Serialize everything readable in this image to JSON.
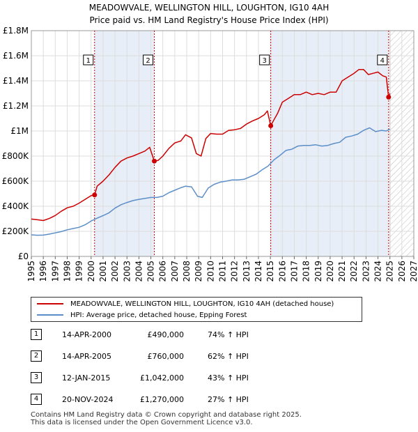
{
  "header": {
    "title_line1": "MEADOWVALE, WELLINGTON HILL, LOUGHTON, IG10 4AH",
    "title_line2": "Price paid vs. HM Land Registry's House Price Index (HPI)"
  },
  "colors": {
    "property_line": "#cc0000",
    "hpi_line": "#5b8ec9",
    "grid": "#dddddd",
    "highlight_band": "#e8eef7",
    "sale_marker_line": "#cc0000"
  },
  "chart_data": {
    "type": "line",
    "xlim": [
      1995,
      2027
    ],
    "ylim": [
      0,
      1800000
    ],
    "x_ticks": [
      "1995",
      "1996",
      "1997",
      "1998",
      "1999",
      "2000",
      "2001",
      "2002",
      "2003",
      "2004",
      "2005",
      "2006",
      "2007",
      "2008",
      "2009",
      "2010",
      "2011",
      "2012",
      "2013",
      "2014",
      "2015",
      "2016",
      "2017",
      "2018",
      "2019",
      "2020",
      "2021",
      "2022",
      "2023",
      "2024",
      "2025",
      "2026",
      "2027"
    ],
    "y_ticks": [
      {
        "value": 0,
        "label": "£0"
      },
      {
        "value": 200000,
        "label": "£200K"
      },
      {
        "value": 400000,
        "label": "£400K"
      },
      {
        "value": 600000,
        "label": "£600K"
      },
      {
        "value": 800000,
        "label": "£800K"
      },
      {
        "value": 1000000,
        "label": "£1M"
      },
      {
        "value": 1200000,
        "label": "£1.2M"
      },
      {
        "value": 1400000,
        "label": "£1.4M"
      },
      {
        "value": 1600000,
        "label": "£1.6M"
      },
      {
        "value": 1800000,
        "label": "£1.8M"
      }
    ],
    "forecast_start": 2025.0,
    "highlight_bands": [
      {
        "start": 2000.29,
        "end": 2005.29
      },
      {
        "start": 2015.03,
        "end": 2024.89
      }
    ],
    "series": [
      {
        "name": "MEADOWVALE, WELLINGTON HILL, LOUGHTON, IG10 4AH (detached house)",
        "color": "#cc0000",
        "x": [
          1995.0,
          1995.5,
          1996.0,
          1996.5,
          1997.0,
          1997.5,
          1998.0,
          1998.5,
          1999.0,
          1999.5,
          2000.0,
          2000.29,
          2000.5,
          2001.0,
          2001.5,
          2002.0,
          2002.5,
          2003.0,
          2003.5,
          2004.0,
          2004.5,
          2004.9,
          2005.29,
          2005.6,
          2006.0,
          2006.5,
          2007.0,
          2007.5,
          2007.9,
          2008.4,
          2008.8,
          2009.2,
          2009.6,
          2010.0,
          2010.5,
          2011.0,
          2011.5,
          2012.0,
          2012.5,
          2013.0,
          2013.5,
          2014.0,
          2014.5,
          2014.75,
          2015.03,
          2015.3,
          2015.6,
          2016.0,
          2016.5,
          2017.0,
          2017.5,
          2018.0,
          2018.5,
          2019.0,
          2019.5,
          2020.0,
          2020.5,
          2021.0,
          2021.5,
          2022.0,
          2022.4,
          2022.8,
          2023.2,
          2023.6,
          2024.0,
          2024.4,
          2024.7,
          2024.89,
          2025.0
        ],
        "values": [
          298000,
          292000,
          286000,
          302000,
          326000,
          360000,
          388000,
          400000,
          425000,
          455000,
          485000,
          490000,
          560000,
          600000,
          650000,
          710000,
          760000,
          785000,
          800000,
          820000,
          840000,
          870000,
          760000,
          765000,
          800000,
          860000,
          905000,
          920000,
          970000,
          945000,
          820000,
          800000,
          940000,
          980000,
          975000,
          975000,
          1005000,
          1010000,
          1020000,
          1055000,
          1080000,
          1100000,
          1130000,
          1160000,
          1042000,
          1090000,
          1140000,
          1230000,
          1260000,
          1290000,
          1290000,
          1310000,
          1290000,
          1300000,
          1290000,
          1310000,
          1310000,
          1400000,
          1430000,
          1460000,
          1490000,
          1490000,
          1450000,
          1460000,
          1470000,
          1440000,
          1430000,
          1270000,
          1300000
        ]
      },
      {
        "name": "HPI: Average price, detached house, Epping Forest",
        "color": "#5b8ec9",
        "x": [
          1995.0,
          1995.5,
          1996.0,
          1996.5,
          1997.0,
          1997.5,
          1998.0,
          1998.5,
          1999.0,
          1999.5,
          2000.0,
          2000.5,
          2001.0,
          2001.5,
          2002.0,
          2002.5,
          2003.0,
          2003.5,
          2004.0,
          2004.5,
          2005.0,
          2005.5,
          2006.0,
          2006.5,
          2007.0,
          2007.5,
          2007.9,
          2008.4,
          2008.9,
          2009.3,
          2009.8,
          2010.3,
          2010.8,
          2011.3,
          2011.8,
          2012.3,
          2012.8,
          2013.3,
          2013.8,
          2014.3,
          2014.8,
          2015.3,
          2015.8,
          2016.3,
          2016.8,
          2017.3,
          2017.8,
          2018.3,
          2018.8,
          2019.3,
          2019.8,
          2020.3,
          2020.8,
          2021.3,
          2021.8,
          2022.3,
          2022.8,
          2023.3,
          2023.8,
          2024.3,
          2024.7,
          2025.0
        ],
        "values": [
          172000,
          169000,
          170000,
          178000,
          188000,
          198000,
          212000,
          222000,
          232000,
          252000,
          282000,
          305000,
          325000,
          348000,
          385000,
          412000,
          430000,
          445000,
          455000,
          462000,
          470000,
          470000,
          480000,
          508000,
          528000,
          548000,
          560000,
          555000,
          480000,
          470000,
          545000,
          575000,
          592000,
          600000,
          610000,
          610000,
          615000,
          635000,
          655000,
          690000,
          720000,
          770000,
          805000,
          845000,
          855000,
          880000,
          885000,
          885000,
          890000,
          880000,
          885000,
          900000,
          910000,
          950000,
          960000,
          975000,
          1005000,
          1025000,
          995000,
          1005000,
          1000000,
          1015000
        ]
      }
    ],
    "sales": [
      {
        "label": "1",
        "x": 2000.29,
        "value": 490000
      },
      {
        "label": "2",
        "x": 2005.29,
        "value": 760000
      },
      {
        "label": "3",
        "x": 2015.03,
        "value": 1042000
      },
      {
        "label": "4",
        "x": 2024.89,
        "value": 1270000
      }
    ]
  },
  "legend": {
    "property": "MEADOWVALE, WELLINGTON HILL, LOUGHTON, IG10 4AH (detached house)",
    "hpi": "HPI: Average price, detached house, Epping Forest"
  },
  "sales_table": [
    {
      "num": "1",
      "date": "14-APR-2000",
      "price": "£490,000",
      "hpi": "74% ↑ HPI"
    },
    {
      "num": "2",
      "date": "14-APR-2005",
      "price": "£760,000",
      "hpi": "62% ↑ HPI"
    },
    {
      "num": "3",
      "date": "12-JAN-2015",
      "price": "£1,042,000",
      "hpi": "43% ↑ HPI"
    },
    {
      "num": "4",
      "date": "20-NOV-2024",
      "price": "£1,270,000",
      "hpi": "27% ↑ HPI"
    }
  ],
  "footer": {
    "line1": "Contains HM Land Registry data © Crown copyright and database right 2025.",
    "line2": "This data is licensed under the Open Government Licence v3.0."
  }
}
